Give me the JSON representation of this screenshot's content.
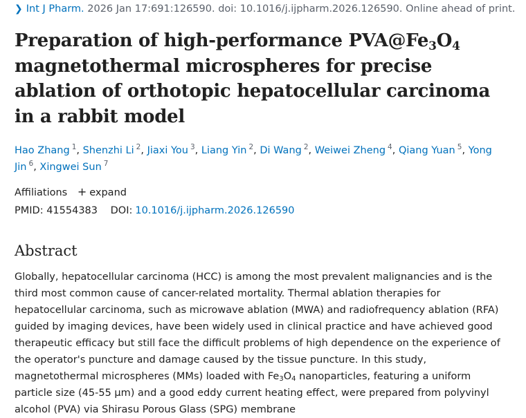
{
  "citation": {
    "journal": "Int J Pharm.",
    "details": "2026 Jan 17:691:126590. doi: 10.1016/j.ijpharm.2026.126590. Online ahead of print."
  },
  "title": {
    "part1": "Preparation of high-performance PVA@Fe",
    "sub1": "3",
    "part2": "O",
    "sub2": "4",
    "part3": "magnetothermal microspheres for precise ablation of orthotopic hepatocellular carcinoma in a rabbit model"
  },
  "authors": [
    {
      "name": "Hao Zhang",
      "sup": "1"
    },
    {
      "name": "Shenzhi Li",
      "sup": "2"
    },
    {
      "name": "Jiaxi You",
      "sup": "3"
    },
    {
      "name": "Liang Yin",
      "sup": "2"
    },
    {
      "name": "Di Wang",
      "sup": "2"
    },
    {
      "name": "Weiwei Zheng",
      "sup": "4"
    },
    {
      "name": "Qiang Yuan",
      "sup": "5"
    },
    {
      "name": "Yong Jin",
      "sup": "6"
    },
    {
      "name": "Xingwei Sun",
      "sup": "7"
    }
  ],
  "affiliations": {
    "label": "Affiliations",
    "expand_icon": "plus-icon",
    "expand_label": "expand"
  },
  "identifiers": {
    "pmid_label": "PMID:",
    "pmid": "41554383",
    "doi_label": "DOI:",
    "doi": "10.1016/j.ijpharm.2026.126590"
  },
  "abstract": {
    "heading": "Abstract",
    "text_a": "Globally, hepatocellular carcinoma (HCC) is among the most prevalent malignancies and is the third most common cause of cancer-related mortality. Thermal ablation therapies for hepatocellular carcinoma, such as microwave ablation (MWA) and radiofrequency ablation (RFA) guided by imaging devices, have been widely used in clinical practice and have achieved good therapeutic efficacy but still face the difficult problems of high dependence on the experience of the operator's puncture and damage caused by the tissue puncture. In this study, magnetothermal microspheres (MMs) loaded with Fe",
    "sub_a": "3",
    "text_b": "O",
    "sub_b": "4",
    "text_c": " nanoparticles, featuring a uniform particle size (45-55 μm) and a good eddy current heating effect, were prepared from polyvinyl alcohol (PVA) via Shirasu Porous Glass (SPG) membrane"
  },
  "colors": {
    "link": "#0071bc",
    "text": "#212121",
    "muted": "#5b616b"
  }
}
